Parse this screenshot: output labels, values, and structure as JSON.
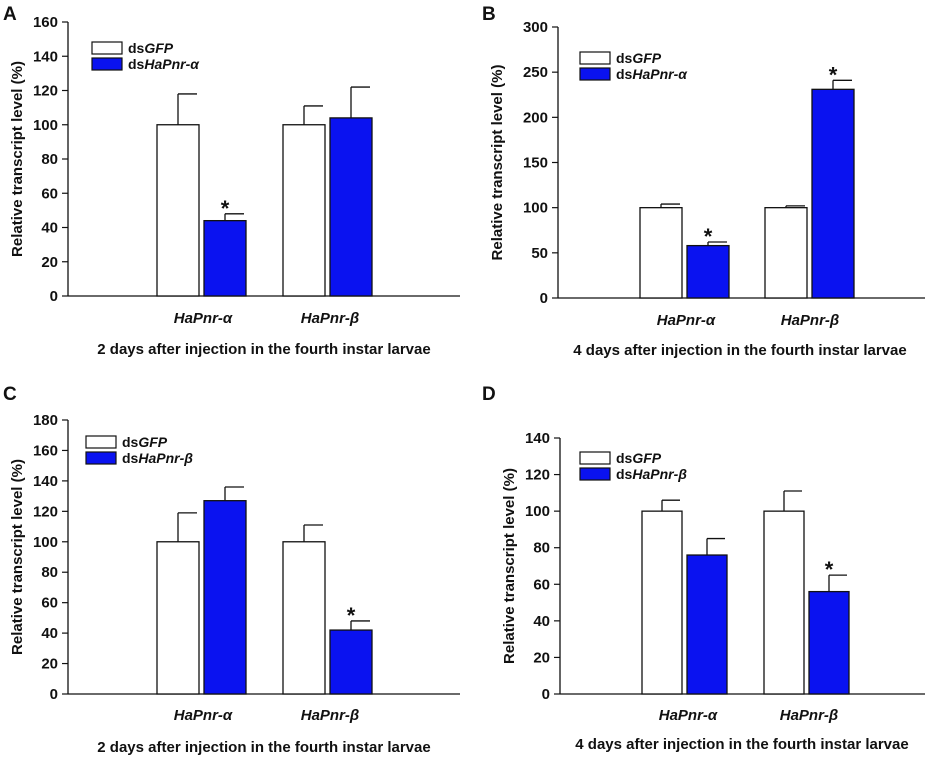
{
  "colors": {
    "control": "#ffffff",
    "treatment": "#0a12f0",
    "stroke": "#111111"
  },
  "chart_data": [
    {
      "panel": "A",
      "type": "bar",
      "categories": [
        "HaPnr-α",
        "HaPnr-β"
      ],
      "series": [
        {
          "name": "dsGFP",
          "prefix": "ds",
          "gene": "GFP",
          "values": [
            100,
            100
          ],
          "errors": [
            18,
            11
          ]
        },
        {
          "name": "dsHaPnr-α",
          "prefix": "ds",
          "gene": "HaPnr-α",
          "values": [
            44,
            104
          ],
          "errors": [
            4,
            18
          ]
        }
      ],
      "significant": [
        [
          false,
          false
        ],
        [
          true,
          false
        ]
      ],
      "ylim": [
        0,
        160
      ],
      "yticks": [
        0,
        20,
        40,
        60,
        80,
        100,
        120,
        140,
        160
      ],
      "ylabel": "Relative transcript level (%)",
      "xlabel": "2 days after injection in the fourth instar larvae",
      "legend": "top-left"
    },
    {
      "panel": "B",
      "type": "bar",
      "categories": [
        "HaPnr-α",
        "HaPnr-β"
      ],
      "series": [
        {
          "name": "dsGFP",
          "prefix": "ds",
          "gene": "GFP",
          "values": [
            100,
            100
          ],
          "errors": [
            4,
            2
          ]
        },
        {
          "name": "dsHaPnr-α",
          "prefix": "ds",
          "gene": "HaPnr-α",
          "values": [
            58,
            231
          ],
          "errors": [
            4,
            10
          ]
        }
      ],
      "significant": [
        [
          false,
          false
        ],
        [
          true,
          true
        ]
      ],
      "ylim": [
        0,
        300
      ],
      "yticks": [
        0,
        50,
        100,
        150,
        200,
        250,
        300
      ],
      "ylabel": "Relative transcript level (%)",
      "xlabel": "4 days after injection in the fourth instar larvae",
      "legend": "top-left"
    },
    {
      "panel": "C",
      "type": "bar",
      "categories": [
        "HaPnr-α",
        "HaPnr-β"
      ],
      "series": [
        {
          "name": "dsGFP",
          "prefix": "ds",
          "gene": "GFP",
          "values": [
            100,
            100
          ],
          "errors": [
            19,
            11
          ]
        },
        {
          "name": "dsHaPnr-β",
          "prefix": "ds",
          "gene": "HaPnr-β",
          "values": [
            127,
            42
          ],
          "errors": [
            9,
            6
          ]
        }
      ],
      "significant": [
        [
          false,
          false
        ],
        [
          false,
          true
        ]
      ],
      "ylim": [
        0,
        180
      ],
      "yticks": [
        0,
        20,
        40,
        60,
        80,
        100,
        120,
        140,
        160,
        180
      ],
      "ylabel": "Relative transcript level (%)",
      "xlabel": "2 days after injection in the fourth instar larvae",
      "legend": "top-left"
    },
    {
      "panel": "D",
      "type": "bar",
      "categories": [
        "HaPnr-α",
        "HaPnr-β"
      ],
      "series": [
        {
          "name": "dsGFP",
          "prefix": "ds",
          "gene": "GFP",
          "values": [
            100,
            100
          ],
          "errors": [
            6,
            11
          ]
        },
        {
          "name": "dsHaPnr-β",
          "prefix": "ds",
          "gene": "HaPnr-β",
          "values": [
            76,
            56
          ],
          "errors": [
            9,
            9
          ]
        }
      ],
      "significant": [
        [
          false,
          false
        ],
        [
          false,
          true
        ]
      ],
      "ylim": [
        0,
        140
      ],
      "yticks": [
        0,
        20,
        40,
        60,
        80,
        100,
        120,
        140
      ],
      "ylabel": "Relative transcript level (%)",
      "xlabel": "4 days after injection in the fourth instar larvae",
      "legend": "top-left"
    }
  ]
}
